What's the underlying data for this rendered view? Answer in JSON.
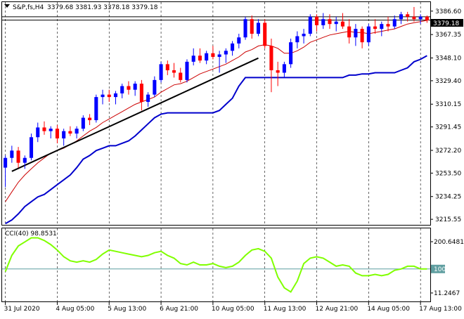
{
  "header": {
    "symbol": "S&P,fs,H4",
    "ohlc": "3379.68 3381.93 3378.18 3379.18"
  },
  "colors": {
    "bull": "#0000ff",
    "bear": "#ff0000",
    "ma": "#cc0000",
    "lower_band": "#0000cc",
    "trendline": "#000000",
    "cci": "#80ff00",
    "cci_level": "#5f9ea0",
    "grid": "#000000"
  },
  "price_badge": "3379.18",
  "cci_label": "CCI(40) 98.8531",
  "cci_level_label": "100",
  "chart_data": [
    {
      "type": "candlestick",
      "ylim": [
        3211,
        3394
      ],
      "y_ticks": [
        "3386.60",
        "3367.35",
        "3348.10",
        "3329.40",
        "3310.15",
        "3291.45",
        "3272.20",
        "3253.50",
        "3234.25",
        "3215.55"
      ],
      "y_tick_values": [
        3386.6,
        3367.35,
        3348.1,
        3329.4,
        3310.15,
        3291.45,
        3272.2,
        3253.5,
        3234.25,
        3215.55
      ],
      "x_ticks": [
        "31 Jul 2020",
        "4 Aug 05:00",
        "5 Aug 13:00",
        "6 Aug 21:00",
        "10 Aug 05:00",
        "11 Aug 13:00",
        "12 Aug 21:00",
        "14 Aug 05:00",
        "17 Aug 13:00"
      ],
      "x_tick_index": [
        0,
        8,
        16,
        24,
        32,
        40,
        48,
        56,
        64
      ],
      "current_price": 3379.18,
      "reference_line": 3381.93,
      "candles": [
        [
          3258,
          3268,
          3242,
          3266
        ],
        [
          3266,
          3276,
          3262,
          3272
        ],
        [
          3272,
          3275,
          3258,
          3262
        ],
        [
          3262,
          3268,
          3257,
          3266
        ],
        [
          3266,
          3286,
          3264,
          3283
        ],
        [
          3283,
          3295,
          3279,
          3291
        ],
        [
          3291,
          3296,
          3285,
          3288
        ],
        [
          3288,
          3292,
          3282,
          3290
        ],
        [
          3290,
          3293,
          3278,
          3282
        ],
        [
          3282,
          3290,
          3276,
          3288
        ],
        [
          3288,
          3292,
          3284,
          3286
        ],
        [
          3286,
          3292,
          3282,
          3290
        ],
        [
          3290,
          3301,
          3288,
          3299
        ],
        [
          3299,
          3302,
          3293,
          3297
        ],
        [
          3297,
          3318,
          3295,
          3316
        ],
        [
          3316,
          3322,
          3310,
          3318
        ],
        [
          3318,
          3322,
          3312,
          3316
        ],
        [
          3316,
          3321,
          3310,
          3319
        ],
        [
          3319,
          3327,
          3315,
          3325
        ],
        [
          3325,
          3329,
          3318,
          3322
        ],
        [
          3322,
          3329,
          3317,
          3327
        ],
        [
          3327,
          3330,
          3305,
          3312
        ],
        [
          3312,
          3320,
          3308,
          3318
        ],
        [
          3318,
          3333,
          3316,
          3330
        ],
        [
          3330,
          3345,
          3328,
          3343
        ],
        [
          3343,
          3346,
          3334,
          3338
        ],
        [
          3338,
          3344,
          3332,
          3336
        ],
        [
          3336,
          3340,
          3328,
          3330
        ],
        [
          3330,
          3347,
          3328,
          3345
        ],
        [
          3345,
          3356,
          3342,
          3350
        ],
        [
          3350,
          3356,
          3344,
          3346
        ],
        [
          3346,
          3354,
          3343,
          3352
        ],
        [
          3352,
          3358,
          3347,
          3349
        ],
        [
          3349,
          3354,
          3336,
          3351
        ],
        [
          3351,
          3356,
          3344,
          3354
        ],
        [
          3354,
          3362,
          3350,
          3360
        ],
        [
          3360,
          3368,
          3356,
          3365
        ],
        [
          3365,
          3382,
          3363,
          3380
        ],
        [
          3380,
          3383,
          3364,
          3368
        ],
        [
          3368,
          3380,
          3366,
          3377
        ],
        [
          3377,
          3380,
          3356,
          3358
        ],
        [
          3358,
          3364,
          3320,
          3338
        ],
        [
          3338,
          3345,
          3325,
          3336
        ],
        [
          3336,
          3345,
          3332,
          3343
        ],
        [
          3343,
          3364,
          3340,
          3361
        ],
        [
          3361,
          3370,
          3356,
          3366
        ],
        [
          3366,
          3372,
          3360,
          3368
        ],
        [
          3368,
          3384,
          3366,
          3382
        ],
        [
          3382,
          3384,
          3370,
          3375
        ],
        [
          3375,
          3385,
          3372,
          3380
        ],
        [
          3380,
          3384,
          3372,
          3376
        ],
        [
          3376,
          3382,
          3370,
          3378
        ],
        [
          3378,
          3385,
          3372,
          3374
        ],
        [
          3374,
          3380,
          3360,
          3365
        ],
        [
          3365,
          3376,
          3358,
          3372
        ],
        [
          3372,
          3374,
          3356,
          3361
        ],
        [
          3361,
          3376,
          3358,
          3374
        ],
        [
          3374,
          3380,
          3368,
          3372
        ],
        [
          3372,
          3378,
          3366,
          3376
        ],
        [
          3376,
          3382,
          3370,
          3374
        ],
        [
          3374,
          3383,
          3372,
          3380
        ],
        [
          3380,
          3386,
          3376,
          3384
        ],
        [
          3384,
          3386,
          3378,
          3382
        ],
        [
          3382,
          3390,
          3378,
          3380
        ],
        [
          3380,
          3384,
          3376,
          3382
        ],
        [
          3382,
          3383,
          3377,
          3379
        ]
      ],
      "moving_average": [
        3230,
        3238,
        3246,
        3252,
        3257,
        3262,
        3266,
        3270,
        3272,
        3274,
        3277,
        3280,
        3284,
        3288,
        3291,
        3295,
        3298,
        3301,
        3304,
        3307,
        3310,
        3312,
        3314,
        3316,
        3320,
        3323,
        3326,
        3327,
        3329,
        3332,
        3335,
        3337,
        3339,
        3341,
        3343,
        3346,
        3349,
        3353,
        3355,
        3358,
        3359,
        3358,
        3356,
        3352,
        3352,
        3354,
        3357,
        3361,
        3363,
        3365,
        3367,
        3368,
        3369,
        3370,
        3369,
        3369,
        3368,
        3369,
        3370,
        3371,
        3372,
        3374,
        3376,
        3377,
        3378,
        3379
      ],
      "lower_band": [
        3212,
        3215,
        3220,
        3226,
        3230,
        3234,
        3236,
        3240,
        3244,
        3248,
        3252,
        3258,
        3265,
        3268,
        3272,
        3274,
        3276,
        3276,
        3278,
        3280,
        3284,
        3289,
        3294,
        3299,
        3302,
        3303,
        3303,
        3303,
        3303,
        3303,
        3303,
        3303,
        3303,
        3305,
        3310,
        3315,
        3325,
        3332,
        3332,
        3332,
        3332,
        3332,
        3332,
        3332,
        3332,
        3332,
        3332,
        3332,
        3332,
        3332,
        3332,
        3332,
        3332,
        3334,
        3334,
        3335,
        3335,
        3336,
        3336,
        3336,
        3336,
        3338,
        3340,
        3345,
        3347,
        3350
      ],
      "trendline": {
        "from": [
          1,
          3255
        ],
        "to": [
          39,
          3348
        ]
      }
    },
    {
      "type": "line",
      "title": "CCI(40) 98.8531",
      "ylim": [
        -20,
        250
      ],
      "y_ticks": [
        "200.6481",
        "100",
        "11.2467"
      ],
      "y_tick_values": [
        200.6481,
        100,
        11.2467
      ],
      "level": 100,
      "values": [
        90,
        150,
        185,
        200,
        215,
        215,
        205,
        190,
        170,
        145,
        130,
        125,
        130,
        125,
        135,
        155,
        170,
        165,
        160,
        155,
        150,
        145,
        150,
        160,
        165,
        150,
        140,
        120,
        115,
        125,
        115,
        115,
        120,
        110,
        105,
        110,
        125,
        150,
        170,
        175,
        165,
        140,
        70,
        30,
        15,
        55,
        120,
        140,
        145,
        140,
        125,
        110,
        115,
        110,
        85,
        75,
        75,
        80,
        75,
        80,
        95,
        100,
        110,
        110,
        100,
        100
      ]
    }
  ]
}
